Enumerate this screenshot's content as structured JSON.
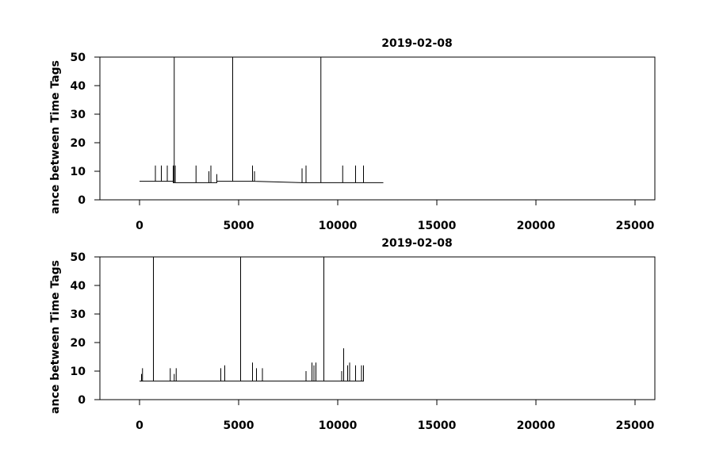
{
  "chart_data": [
    {
      "type": "line",
      "title": "2019-02-08",
      "ylabel": "ance between Time Tags",
      "color": "#000000",
      "xlim": [
        -2000,
        26000
      ],
      "ylim": [
        0,
        50
      ],
      "xticks": [
        0,
        5000,
        10000,
        15000,
        20000,
        25000
      ],
      "yticks": [
        0,
        10,
        20,
        30,
        40,
        50
      ],
      "x": [
        0,
        800,
        800,
        800,
        1100,
        1100,
        1100,
        1400,
        1400,
        1400,
        1700,
        1700,
        1700,
        1750,
        1750,
        1750,
        1800,
        1800,
        1800,
        2850,
        2850,
        2850,
        3500,
        3500,
        3500,
        3600,
        3600,
        3600,
        3900,
        3900,
        3900,
        4700,
        4700,
        4700,
        5700,
        5700,
        5700,
        5800,
        5800,
        5800,
        8200,
        8200,
        8200,
        8400,
        8400,
        8400,
        9150,
        9150,
        9150,
        10250,
        10250,
        10250,
        10900,
        10900,
        10900,
        11300,
        11300,
        11300,
        12300
      ],
      "values": [
        6.5,
        6.5,
        12,
        6.5,
        6.5,
        12,
        6.5,
        6.5,
        12,
        6.5,
        6.5,
        12,
        6,
        6,
        50,
        6,
        6,
        12,
        6,
        6,
        12,
        6,
        6,
        10,
        6,
        6,
        12,
        6,
        6,
        9,
        6.5,
        6.5,
        50,
        6.5,
        6.5,
        12,
        6.5,
        6.5,
        10,
        6.5,
        6,
        11,
        6,
        6,
        12,
        6,
        6,
        50,
        6,
        6,
        12,
        6,
        6,
        12,
        6,
        6,
        12,
        6,
        6
      ]
    },
    {
      "type": "line",
      "title": "2019-02-08",
      "ylabel": "ance between Time Tags",
      "color": "#000000",
      "xlim": [
        -2000,
        26000
      ],
      "ylim": [
        0,
        50
      ],
      "xticks": [
        0,
        5000,
        10000,
        15000,
        20000,
        25000
      ],
      "yticks": [
        0,
        10,
        20,
        30,
        40,
        50
      ],
      "x": [
        0,
        100,
        100,
        100,
        150,
        150,
        150,
        700,
        700,
        700,
        1550,
        1550,
        1550,
        1750,
        1750,
        1750,
        1850,
        1850,
        1850,
        4100,
        4100,
        4100,
        4300,
        4300,
        4300,
        5100,
        5100,
        5100,
        5700,
        5700,
        5700,
        5900,
        5900,
        5900,
        6200,
        6200,
        6200,
        8400,
        8400,
        8400,
        8700,
        8700,
        8700,
        8800,
        8800,
        8800,
        8900,
        8900,
        8900,
        9300,
        9300,
        9300,
        10200,
        10200,
        10200,
        10300,
        10300,
        10300,
        10500,
        10500,
        10500,
        10600,
        10600,
        10600,
        10900,
        10900,
        10900,
        11200,
        11200,
        11200,
        11300,
        11300
      ],
      "values": [
        6.5,
        6.5,
        9,
        6.5,
        6.5,
        11,
        6.5,
        6.5,
        50,
        6.5,
        6.5,
        11,
        6.5,
        6.5,
        9,
        6.5,
        6.5,
        11,
        6.5,
        6.5,
        11,
        6.5,
        6.5,
        12,
        6.5,
        6.5,
        50,
        6.5,
        6.5,
        13,
        6.5,
        6.5,
        11,
        6.5,
        6.5,
        11,
        6.5,
        6.5,
        10,
        6.5,
        6.5,
        13,
        6.5,
        6.5,
        12,
        6.5,
        6.5,
        13,
        6.5,
        6.5,
        50,
        6.5,
        6.5,
        10,
        6.5,
        6.5,
        18,
        6.5,
        6.5,
        12,
        6.5,
        6.5,
        13,
        6.5,
        6.5,
        12,
        6.5,
        6.5,
        12,
        6.5,
        6.5,
        12
      ]
    }
  ]
}
